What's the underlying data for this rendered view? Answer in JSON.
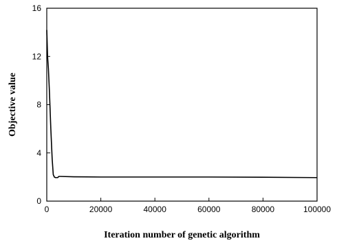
{
  "chart_data": {
    "type": "line",
    "title": "",
    "xlabel": "Iteration number of genetic algorithm",
    "ylabel": "Objective value",
    "xlim": [
      0,
      100000
    ],
    "ylim": [
      0,
      16
    ],
    "xticks": [
      0,
      20000,
      40000,
      60000,
      80000,
      100000
    ],
    "yticks": [
      0,
      4,
      8,
      12,
      16
    ],
    "x_tick_labels": [
      "0",
      "20000",
      "40000",
      "60000",
      "80000",
      "100000"
    ],
    "y_tick_labels": [
      "0",
      "4",
      "8",
      "12",
      "16"
    ],
    "grid": false,
    "legend": "none",
    "series": [
      {
        "x": [
          0,
          100,
          300,
          600,
          1000,
          1500,
          2000,
          2400,
          2800,
          3200,
          4000,
          4500,
          5000,
          10000,
          20000,
          40000,
          60000,
          80000,
          99900
        ],
        "y": [
          14.2,
          13.5,
          12.0,
          11.0,
          9.0,
          6.0,
          3.5,
          2.2,
          2.0,
          1.95,
          1.95,
          2.05,
          2.05,
          2.02,
          2.0,
          2.0,
          2.0,
          1.98,
          1.95
        ]
      }
    ]
  }
}
